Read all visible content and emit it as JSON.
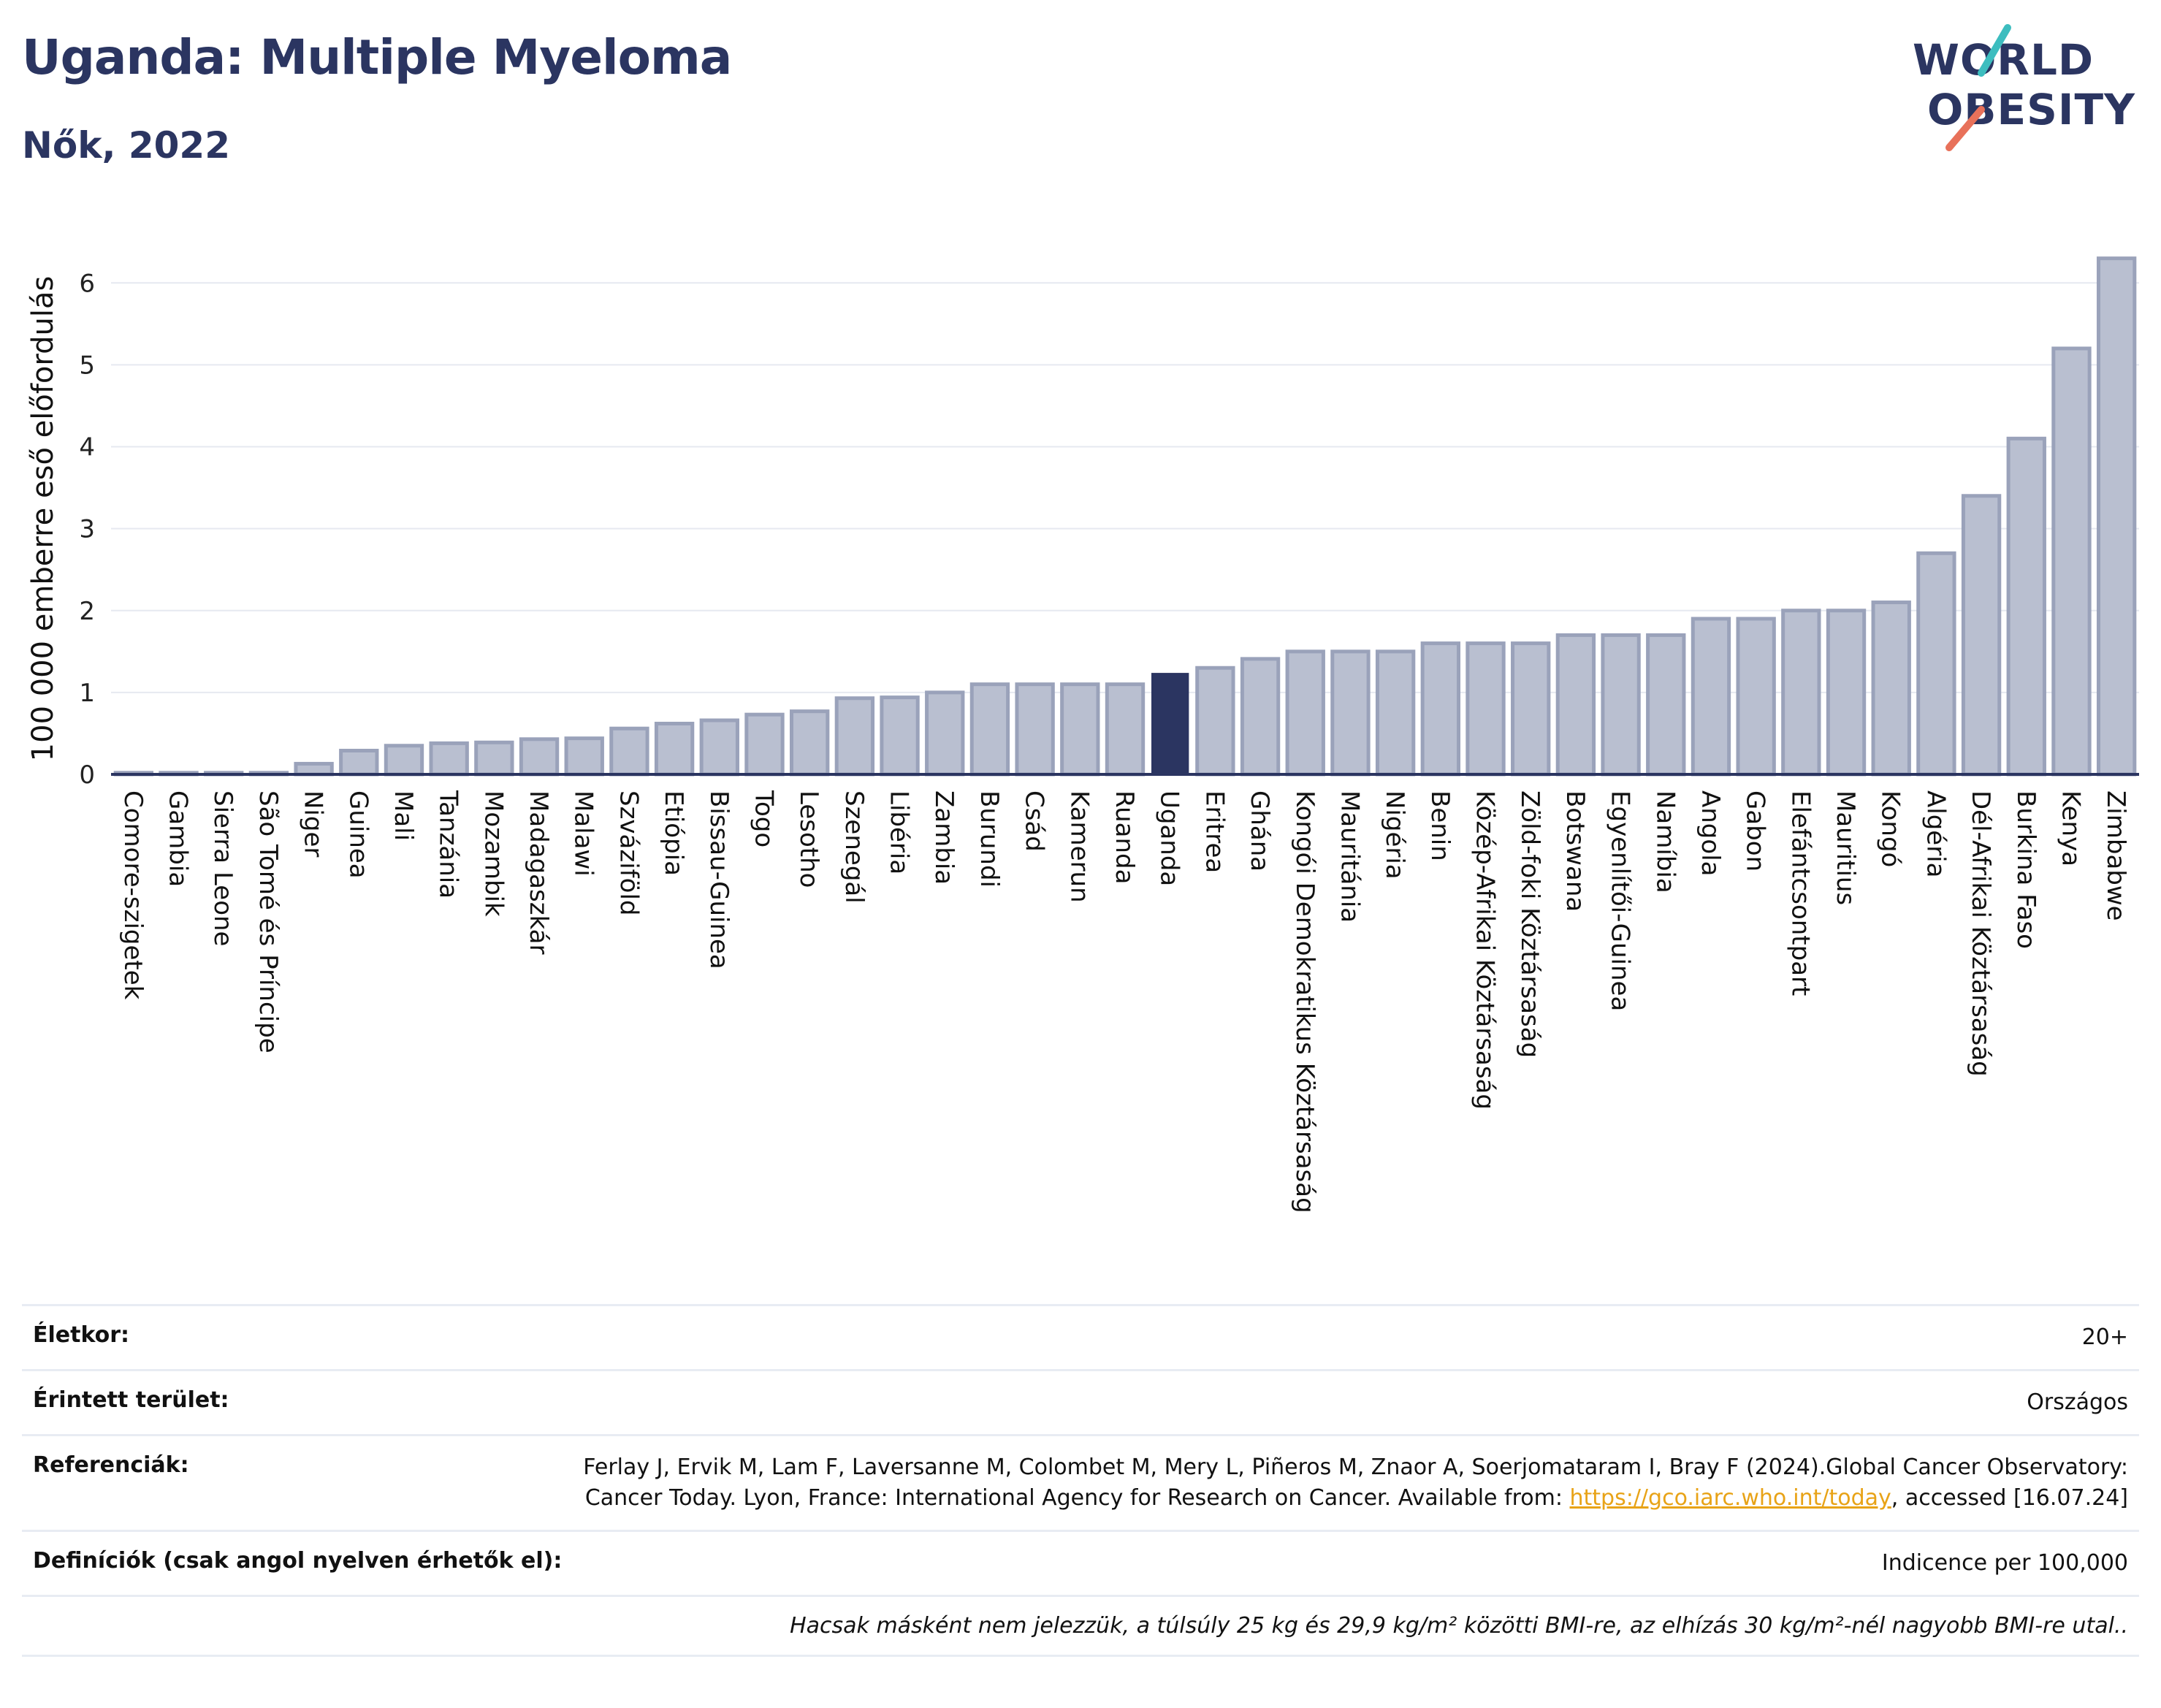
{
  "header": {
    "title": "Uganda: Multiple Myeloma",
    "subtitle": "Nők, 2022"
  },
  "logo": {
    "line1": "WORLD",
    "line2": "OBESITY",
    "accent_colors": [
      "#3dbdbf",
      "#e8715a"
    ]
  },
  "colors": {
    "bar": "#b9bfd0",
    "bar_edge": "#9aa2ba",
    "highlight": "#2b3561",
    "axis": "#2b3561",
    "text": "#2b3561"
  },
  "chart_data": {
    "type": "bar",
    "ylabel": "100 000 emberre eső előfordulás",
    "xlabel": "",
    "ylim": [
      0,
      6.6
    ],
    "yticks": [
      0,
      1,
      2,
      3,
      4,
      5,
      6
    ],
    "grid": true,
    "highlight": "Uganda",
    "categories": [
      "Comore-szigetek",
      "Gambia",
      "Sierra Leone",
      "São Tomé és Príncipe",
      "Niger",
      "Guinea",
      "Mali",
      "Tanzánia",
      "Mozambik",
      "Madagaszkár",
      "Malawi",
      "Szváziföld",
      "Etiópia",
      "Bissau-Guinea",
      "Togo",
      "Lesotho",
      "Szenegál",
      "Libéria",
      "Zambia",
      "Burundi",
      "Csád",
      "Kamerun",
      "Ruanda",
      "Uganda",
      "Eritrea",
      "Ghána",
      "Kongói Demokratikus Köztársaság",
      "Mauritánia",
      "Nigéria",
      "Benin",
      "Közép-Afrikai Köztársaság",
      "Zöld-foki Köztársaság",
      "Botswana",
      "Egyenlítői-Guinea",
      "Namíbia",
      "Angola",
      "Gabon",
      "Elefántcsontpart",
      "Mauritius",
      "Kongó",
      "Algéria",
      "Dél-Afrikai Köztársaság",
      "Burkina Faso",
      "Kenya",
      "Zimbabwe"
    ],
    "values": [
      0.02,
      0.02,
      0.02,
      0.02,
      0.13,
      0.29,
      0.35,
      0.38,
      0.39,
      0.43,
      0.44,
      0.56,
      0.62,
      0.66,
      0.73,
      0.77,
      0.93,
      0.94,
      1.0,
      1.1,
      1.1,
      1.1,
      1.1,
      1.23,
      1.3,
      1.41,
      1.5,
      1.5,
      1.5,
      1.6,
      1.6,
      1.6,
      1.7,
      1.7,
      1.7,
      1.9,
      1.9,
      2.0,
      2.0,
      2.1,
      2.7,
      3.4,
      4.1,
      5.2,
      6.3
    ]
  },
  "meta": {
    "age_label": "Életkor:",
    "age_value": "20+",
    "area_label": "Érintett terület:",
    "area_value": "Országos",
    "ref_label": "Referenciák:",
    "ref_text_1": "Ferlay J, Ervik M, Lam F, Laversanne M, Colombet M, Mery L, Piñeros M, Znaor A, Soerjomataram I, Bray F (2024).Global Cancer Observatory: Cancer Today. Lyon, France: International Agency for Research on Cancer. Available from: ",
    "ref_link": "https://gco.iarc.who.int/today",
    "ref_text_2": ", accessed [16.07.24]",
    "def_label": "Definíciók (csak angol nyelven érhetők el):",
    "def_value": "Indicence per 100,000",
    "note": "Hacsak másként nem jelezzük, a túlsúly 25 kg és 29,9 kg/m² közötti BMI-re, az elhízás 30 kg/m²-nél nagyobb BMI-re utal.."
  }
}
